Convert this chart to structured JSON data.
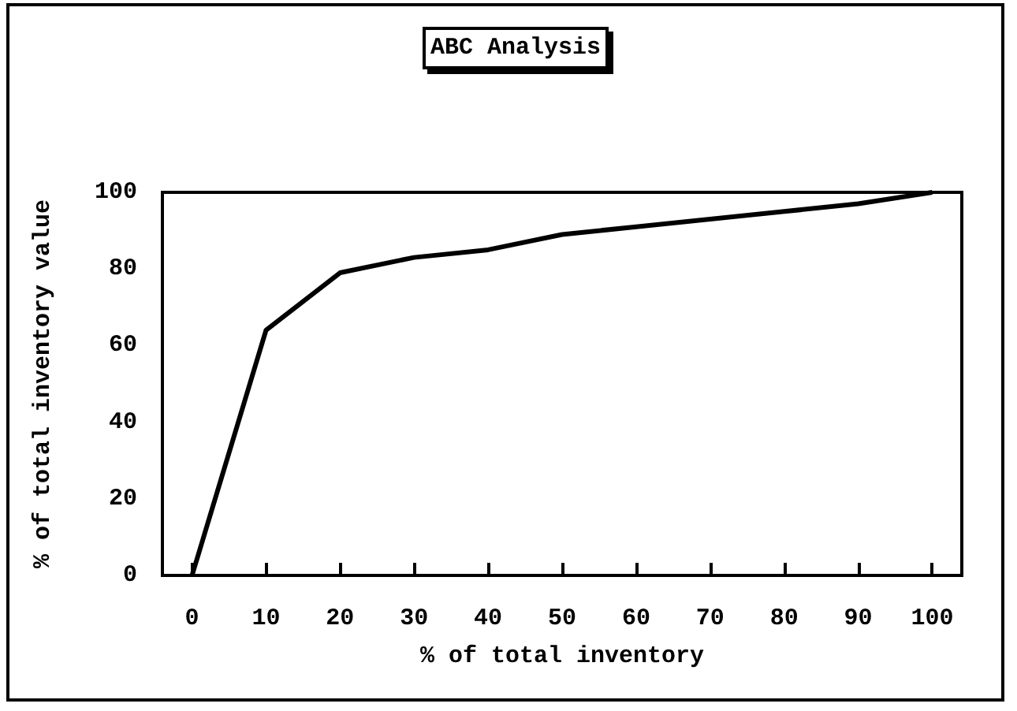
{
  "chart_data": {
    "type": "line",
    "title": "ABC Analysis",
    "xlabel": "% of total inventory",
    "ylabel": "% of total inventory value",
    "x": [
      0,
      10,
      20,
      30,
      40,
      50,
      60,
      70,
      80,
      90,
      100
    ],
    "series": [
      {
        "color": "#000000",
        "values": [
          0,
          64,
          79,
          83,
          85,
          89,
          91,
          93,
          95,
          97,
          100
        ]
      }
    ],
    "xlim": [
      -4,
      104
    ],
    "xticks": [
      0,
      10,
      20,
      30,
      40,
      50,
      60,
      70,
      80,
      90,
      100
    ],
    "ylim": [
      0,
      100
    ],
    "yticks": [
      0,
      20,
      40,
      60,
      80,
      100
    ],
    "grid": false,
    "marker": "none",
    "line_style": "solid"
  }
}
